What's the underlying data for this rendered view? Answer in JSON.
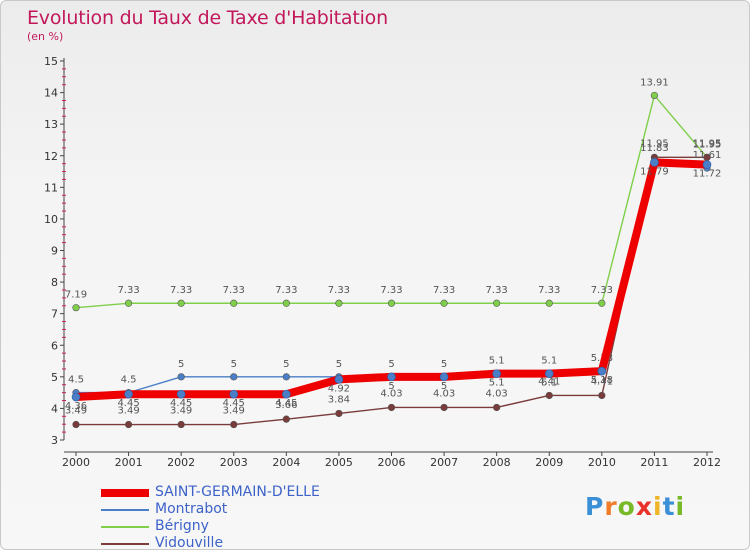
{
  "header": {
    "title": "Evolution du Taux de Taxe d'Habitation",
    "subtitle": "(en %)"
  },
  "logo": {
    "text": "Proxiti"
  },
  "chart_data": {
    "type": "line",
    "x": [
      "2000",
      "2001",
      "2002",
      "2003",
      "2004",
      "2005",
      "2006",
      "2007",
      "2008",
      "2009",
      "2010",
      "2011",
      "2012"
    ],
    "ylim": [
      3,
      15
    ],
    "yticks": [
      3,
      4,
      5,
      6,
      7,
      8,
      9,
      10,
      11,
      12,
      13,
      14,
      15
    ],
    "grid": false,
    "legend_position": "bottom-left",
    "series": [
      {
        "name": "Bérigny",
        "color": "#7fcf4a",
        "values": [
          7.19,
          7.33,
          7.33,
          7.33,
          7.33,
          7.33,
          7.33,
          7.33,
          7.33,
          7.33,
          7.33,
          13.91,
          11.95
        ],
        "labels": [
          "7.19",
          "7.33",
          "7.33",
          "7.33",
          "7.33",
          "7.33",
          "7.33",
          "7.33",
          "7.33",
          "7.33",
          "7.33",
          "13.91",
          "11.95"
        ]
      },
      {
        "name": "Vidouville",
        "color": "#7a3b3b",
        "values": [
          3.49,
          3.49,
          3.49,
          3.49,
          3.66,
          3.84,
          4.03,
          4.03,
          4.03,
          4.41,
          4.41,
          11.95,
          11.95
        ],
        "labels": [
          "3.49",
          "3.49",
          "3.49",
          "3.49",
          "3.66",
          "3.84",
          "4.03",
          "4.03",
          "4.03",
          "4.41",
          "4.41",
          "11.95",
          "11.95"
        ]
      },
      {
        "name": "Montrabot",
        "color": "#4a7fc8",
        "values": [
          4.5,
          4.5,
          5,
          5,
          5,
          5,
          5,
          5,
          5.1,
          5.1,
          5.18,
          11.83,
          11.61
        ],
        "labels": [
          "4.5",
          "4.5",
          "5",
          "5",
          "5",
          "5",
          "5",
          "5",
          "5.1",
          "5.1",
          "5.18",
          "11.83",
          "11.61"
        ]
      },
      {
        "name": "SAINT-GERMAIN-D'ELLE",
        "color": "#ee0000",
        "values": [
          4.36,
          4.45,
          4.45,
          4.45,
          4.45,
          4.92,
          5,
          5,
          5.1,
          5.1,
          5.18,
          11.79,
          11.72
        ],
        "labels": [
          "4.36",
          "4.45",
          "4.45",
          "4.45",
          "4.45",
          "4.92",
          "5",
          "5",
          "5.1",
          "5.1",
          "5.18",
          "11.79",
          "11.72"
        ]
      }
    ]
  }
}
